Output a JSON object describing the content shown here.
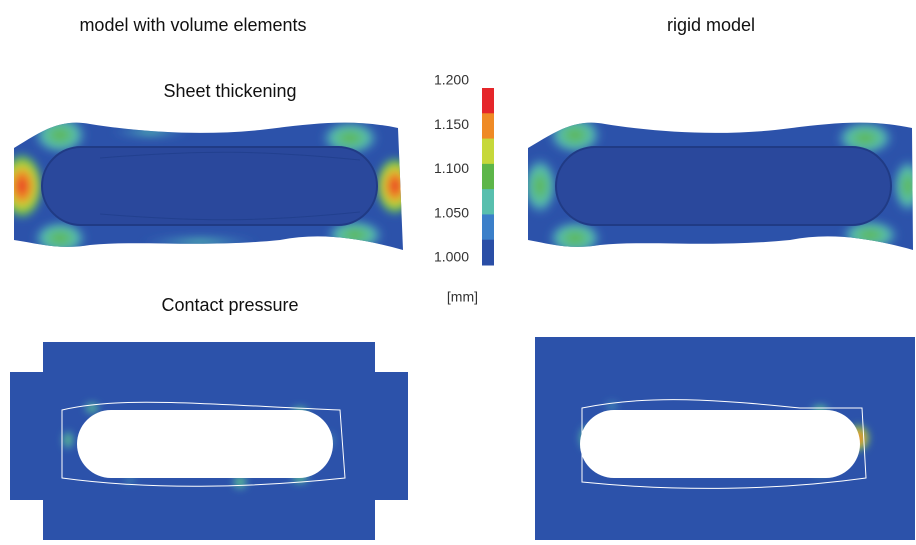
{
  "columns": {
    "left": "model with volume elements",
    "right": "rigid model"
  },
  "rows": {
    "top": "Sheet thickening",
    "bottom": "Contact pressure"
  },
  "colorbar": {
    "ticks": [
      "1.200",
      "1.150",
      "1.100",
      "1.050",
      "1.000"
    ],
    "unit": "[mm]",
    "colors": [
      "#e5262a",
      "#ef8a25",
      "#c6d83a",
      "#5db649",
      "#58bfae",
      "#3b7fc9",
      "#2a4ea6"
    ]
  }
}
